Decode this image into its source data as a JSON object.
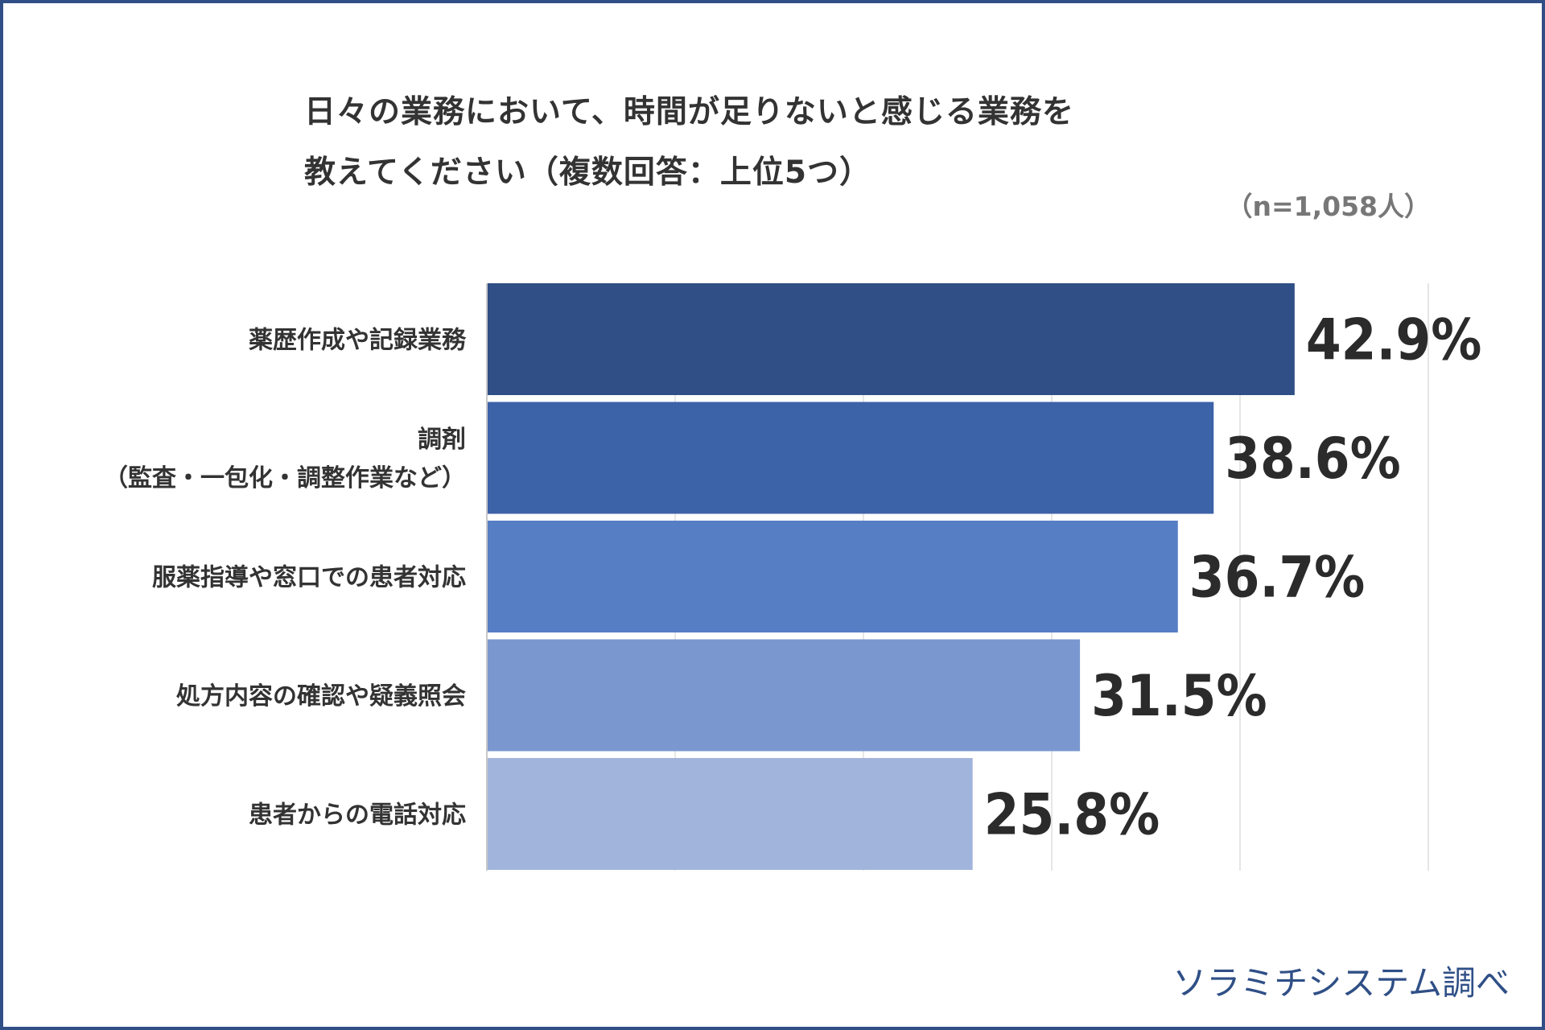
{
  "title_lines": [
    "日々の業務において、時間が足りないと感じる業務を",
    "教えてください（複数回答：上位5つ）"
  ],
  "sample_size": "（n=1,058人）",
  "credit": "ソラミチシステム調べ",
  "chart_data": {
    "type": "bar",
    "orientation": "horizontal",
    "title": "日々の業務において、時間が足りないと感じる業務を教えてください（複数回答：上位5つ）",
    "categories": [
      [
        "薬歴作成や記録業務"
      ],
      [
        "調剤",
        "（監査・一包化・調整作業など）"
      ],
      [
        "服薬指導や窓口での患者対応"
      ],
      [
        "処方内容の確認や疑義照会"
      ],
      [
        "患者からの電話対応"
      ]
    ],
    "values": [
      42.9,
      38.6,
      36.7,
      31.5,
      25.8
    ],
    "value_labels": [
      "42.9%",
      "38.6%",
      "36.7%",
      "31.5%",
      "25.8%"
    ],
    "unit": "%",
    "xlim": [
      0,
      50
    ],
    "gridlines": [
      10,
      20,
      30,
      40,
      50
    ],
    "bar_colors": [
      "#2f4f86",
      "#3c62a8",
      "#567ec4",
      "#7a98cf",
      "#a1b4dc"
    ],
    "grid_color": "#dddddd",
    "axis_color": "#c8c8c8"
  }
}
